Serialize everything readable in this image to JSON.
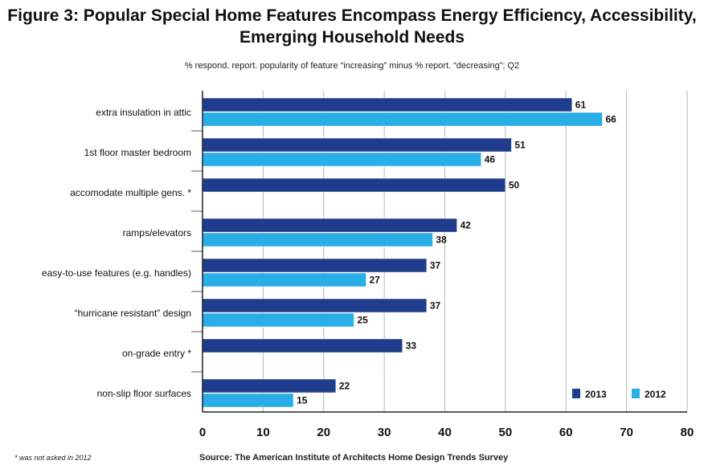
{
  "chart_data": {
    "type": "bar",
    "orientation": "horizontal",
    "title_line1": "Figure 3: Popular Special Home Features Encompass Energy Efficiency, Accessibility,",
    "title_line2": "Emerging Household Needs",
    "subtitle": "% respond. report. popularity of feature “increasing” minus % report. “decreasing”; Q2",
    "categories": [
      "extra insulation in attic",
      "1st floor master bedroom",
      "accomodate multiple gens. *",
      "ramps/elevators",
      "easy-to-use features (e.g. handles)",
      "“hurricane resistant” design",
      "on-grade entry *",
      "non-slip floor surfaces"
    ],
    "series": [
      {
        "name": "2013",
        "color": "#1f3d8c",
        "values": [
          61,
          51,
          50,
          42,
          37,
          37,
          33,
          22
        ]
      },
      {
        "name": "2012",
        "color": "#29aee8",
        "values": [
          66,
          46,
          null,
          38,
          27,
          25,
          null,
          15
        ]
      }
    ],
    "xlim": [
      0,
      80
    ],
    "xticks": [
      "0",
      "10",
      "20",
      "30",
      "40",
      "50",
      "60",
      "70",
      "80"
    ],
    "grid": "vertical",
    "legend_position": "bottom-right",
    "footnote": "* was not asked in 2012",
    "source": "Source: The American Institute of Architects Home Design Trends Survey"
  }
}
